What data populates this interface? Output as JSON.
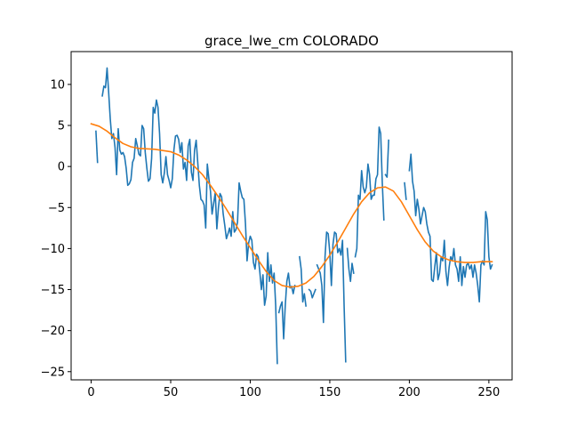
{
  "chart_data": {
    "type": "line",
    "title": "grace_lwe_cm COLORADO",
    "xlabel": "",
    "ylabel": "",
    "xlim": [
      -12.6,
      264.6
    ],
    "ylim": [
      -26,
      14
    ],
    "xticks": [
      0,
      50,
      100,
      150,
      200,
      250
    ],
    "yticks": [
      10,
      5,
      0,
      -5,
      -10,
      -15,
      -20,
      -25
    ],
    "grid": false,
    "legend": "none",
    "series": [
      {
        "color": "#1f77b4",
        "segments": [
          [
            [
              3,
              4.3
            ],
            [
              4,
              0.5
            ]
          ],
          [
            [
              7,
              8.6
            ],
            [
              8,
              9.8
            ],
            [
              9,
              9.6
            ],
            [
              10,
              12.0
            ],
            [
              11,
              9.0
            ],
            [
              12,
              5.8
            ],
            [
              13,
              3.4
            ],
            [
              14,
              4.0
            ],
            [
              15,
              2.3
            ],
            [
              16,
              -1.0
            ],
            [
              17,
              4.6
            ],
            [
              18,
              2.0
            ],
            [
              19,
              1.5
            ],
            [
              20,
              1.7
            ],
            [
              21,
              1.2
            ],
            [
              22,
              -0.2
            ],
            [
              23,
              -2.3
            ],
            [
              24,
              -2.1
            ],
            [
              25,
              -1.6
            ],
            [
              26,
              0.5
            ],
            [
              27,
              1.0
            ],
            [
              28,
              3.4
            ],
            [
              29,
              2.5
            ],
            [
              30,
              1.5
            ],
            [
              31,
              1.3
            ],
            [
              32,
              5.0
            ],
            [
              33,
              4.6
            ],
            [
              34,
              1.7
            ],
            [
              35,
              -0.2
            ],
            [
              36,
              -1.8
            ],
            [
              37,
              -1.5
            ],
            [
              38,
              1.0
            ],
            [
              39,
              7.2
            ],
            [
              40,
              6.5
            ],
            [
              41,
              8.1
            ],
            [
              42,
              7.2
            ],
            [
              43,
              4.0
            ],
            [
              44,
              -1.0
            ],
            [
              45,
              -2.0
            ],
            [
              46,
              -0.8
            ],
            [
              47,
              1.2
            ],
            [
              48,
              -1.0
            ],
            [
              49,
              -1.7
            ],
            [
              50,
              -2.6
            ],
            [
              51,
              -1.5
            ],
            [
              52,
              2.0
            ],
            [
              53,
              3.7
            ],
            [
              54,
              3.8
            ],
            [
              55,
              3.3
            ],
            [
              56,
              1.7
            ],
            [
              57,
              2.9
            ],
            [
              58,
              -0.3
            ],
            [
              59,
              0.5
            ],
            [
              60,
              -1.7
            ],
            [
              61,
              2.5
            ],
            [
              62,
              3.3
            ],
            [
              63,
              -0.7
            ],
            [
              64,
              -1.7
            ],
            [
              65,
              2.0
            ],
            [
              66,
              3.2
            ],
            [
              67,
              0.5
            ],
            [
              68,
              -2.3
            ],
            [
              69,
              -4.0
            ],
            [
              70,
              -4.2
            ],
            [
              71,
              -4.7
            ],
            [
              72,
              -7.5
            ],
            [
              73,
              0.3
            ],
            [
              74,
              -1.5
            ],
            [
              75,
              -3.0
            ],
            [
              76,
              -5.8
            ],
            [
              77,
              -4.5
            ],
            [
              78,
              -3.2
            ],
            [
              79,
              -7.6
            ],
            [
              80,
              -5.0
            ],
            [
              81,
              -3.3
            ],
            [
              82,
              -3.7
            ],
            [
              83,
              -5.8
            ],
            [
              84,
              -7.2
            ],
            [
              85,
              -8.8
            ],
            [
              86,
              -8.2
            ],
            [
              87,
              -7.5
            ],
            [
              88,
              -8.5
            ],
            [
              89,
              -5.5
            ],
            [
              90,
              -8.0
            ],
            [
              91,
              -7.7
            ],
            [
              92,
              -6.8
            ],
            [
              93,
              -2.0
            ],
            [
              94,
              -3.0
            ],
            [
              95,
              -3.8
            ],
            [
              96,
              -4.0
            ],
            [
              97,
              -7.0
            ],
            [
              98,
              -11.5
            ],
            [
              99,
              -9.3
            ],
            [
              100,
              -8.5
            ],
            [
              101,
              -9.0
            ],
            [
              102,
              -11.7
            ],
            [
              103,
              -12.5
            ],
            [
              104,
              -10.7
            ],
            [
              105,
              -11.0
            ],
            [
              106,
              -12.8
            ],
            [
              107,
              -15.0
            ],
            [
              108,
              -13.2
            ],
            [
              109,
              -16.9
            ],
            [
              110,
              -15.8
            ],
            [
              111,
              -10.5
            ],
            [
              112,
              -14.0
            ],
            [
              113,
              -12.0
            ],
            [
              114,
              -14.2
            ],
            [
              115,
              -13.0
            ],
            [
              116,
              -17.0
            ],
            [
              117,
              -24.0
            ]
          ],
          [
            [
              118,
              -17.8
            ],
            [
              119,
              -17.0
            ],
            [
              120,
              -16.5
            ],
            [
              121,
              -21.0
            ],
            [
              122,
              -17.0
            ],
            [
              123,
              -14.0
            ],
            [
              124,
              -13.0
            ],
            [
              125,
              -14.8
            ],
            [
              126,
              -14.6
            ],
            [
              127,
              -15.5
            ],
            [
              128,
              -14.5
            ]
          ],
          [
            [
              131,
              -11.0
            ],
            [
              132,
              -12.5
            ],
            [
              133,
              -16.5
            ],
            [
              134,
              -15.5
            ],
            [
              135,
              -17.0
            ]
          ],
          [
            [
              137,
              -15.0
            ],
            [
              138,
              -15.2
            ],
            [
              139,
              -16.0
            ],
            [
              140,
              -15.5
            ],
            [
              141,
              -15.0
            ]
          ],
          [
            [
              142,
              -12.0
            ],
            [
              143,
              -12.5
            ],
            [
              144,
              -13.0
            ],
            [
              145,
              -14.5
            ],
            [
              146,
              -19.0
            ],
            [
              147,
              -11.0
            ],
            [
              148,
              -8.0
            ],
            [
              149,
              -8.2
            ],
            [
              150,
              -10.5
            ],
            [
              151,
              -14.5
            ],
            [
              152,
              -9.5
            ],
            [
              153,
              -8.0
            ],
            [
              154,
              -8.2
            ],
            [
              155,
              -10.5
            ],
            [
              156,
              -10.0
            ],
            [
              157,
              -10.8
            ],
            [
              158,
              -9.0
            ],
            [
              159,
              -17.0
            ],
            [
              160,
              -23.8
            ]
          ],
          [
            [
              161,
              -10.0
            ],
            [
              162,
              -12.5
            ],
            [
              163,
              -14.0
            ],
            [
              164,
              -11.8
            ],
            [
              165,
              -13.0
            ]
          ],
          [
            [
              166,
              -11.0
            ],
            [
              167,
              -10.0
            ],
            [
              168,
              -3.5
            ],
            [
              169,
              -4.0
            ],
            [
              170,
              -0.5
            ],
            [
              171,
              -2.5
            ],
            [
              172,
              -3.2
            ],
            [
              173,
              -2.5
            ],
            [
              174,
              0.3
            ],
            [
              175,
              -1.0
            ],
            [
              176,
              -4.0
            ],
            [
              177,
              -3.5
            ],
            [
              178,
              -3.5
            ],
            [
              179,
              -1.5
            ],
            [
              180,
              -1.0
            ],
            [
              181,
              4.8
            ],
            [
              182,
              4.0
            ],
            [
              183,
              -2.0
            ],
            [
              184,
              -6.5
            ]
          ],
          [
            [
              185,
              -1.0
            ],
            [
              186,
              -1.3
            ],
            [
              187,
              3.2
            ]
          ],
          [
            [
              197,
              -2.0
            ],
            [
              198,
              -4.0
            ]
          ],
          [
            [
              200,
              -0.5
            ],
            [
              201,
              1.5
            ],
            [
              202,
              -1.8
            ],
            [
              203,
              -3.0
            ],
            [
              204,
              -6.0
            ],
            [
              205,
              -4.0
            ],
            [
              206,
              -5.2
            ],
            [
              207,
              -7.0
            ],
            [
              208,
              -6.0
            ],
            [
              209,
              -5.0
            ],
            [
              210,
              -5.5
            ],
            [
              211,
              -7.0
            ],
            [
              212,
              -8.0
            ],
            [
              213,
              -8.5
            ],
            [
              214,
              -13.8
            ],
            [
              215,
              -14.0
            ],
            [
              216,
              -12.2
            ],
            [
              217,
              -10.5
            ],
            [
              218,
              -13.8
            ],
            [
              219,
              -13.0
            ],
            [
              220,
              -11.0
            ],
            [
              221,
              -11.5
            ],
            [
              222,
              -9.0
            ],
            [
              223,
              -12.8
            ],
            [
              224,
              -14.5
            ],
            [
              225,
              -12.3
            ],
            [
              226,
              -11.0
            ],
            [
              227,
              -11.5
            ],
            [
              228,
              -10.0
            ],
            [
              229,
              -12.0
            ],
            [
              230,
              -12.5
            ],
            [
              231,
              -14.0
            ],
            [
              232,
              -11.0
            ],
            [
              233,
              -14.5
            ],
            [
              234,
              -12.2
            ],
            [
              235,
              -13.5
            ],
            [
              236,
              -12.0
            ],
            [
              237,
              -11.8
            ],
            [
              238,
              -12.5
            ],
            [
              239,
              -12.0
            ],
            [
              240,
              -13.5
            ],
            [
              241,
              -12.0
            ],
            [
              242,
              -13.0
            ],
            [
              243,
              -14.5
            ],
            [
              244,
              -16.5
            ],
            [
              245,
              -12.0
            ],
            [
              246,
              -11.5
            ],
            [
              247,
              -12.0
            ],
            [
              248,
              -5.5
            ],
            [
              249,
              -6.5
            ],
            [
              250,
              -11.0
            ],
            [
              251,
              -12.5
            ],
            [
              252,
              -12.0
            ]
          ]
        ]
      },
      {
        "color": "#ff7f0e",
        "segments": [
          [
            [
              0,
              5.2
            ],
            [
              5,
              4.9
            ],
            [
              10,
              4.3
            ],
            [
              15,
              3.5
            ],
            [
              20,
              2.8
            ],
            [
              25,
              2.4
            ],
            [
              30,
              2.2
            ],
            [
              40,
              2.1
            ],
            [
              50,
              1.8
            ],
            [
              55,
              1.4
            ],
            [
              60,
              0.8
            ],
            [
              65,
              0.0
            ],
            [
              70,
              -1.0
            ],
            [
              75,
              -2.3
            ],
            [
              80,
              -3.7
            ],
            [
              85,
              -5.2
            ],
            [
              90,
              -6.8
            ],
            [
              95,
              -8.4
            ],
            [
              100,
              -9.9
            ],
            [
              105,
              -11.4
            ],
            [
              110,
              -12.8
            ],
            [
              115,
              -13.9
            ],
            [
              120,
              -14.5
            ],
            [
              125,
              -14.7
            ],
            [
              130,
              -14.6
            ],
            [
              135,
              -14.2
            ],
            [
              140,
              -13.4
            ],
            [
              145,
              -12.2
            ],
            [
              150,
              -10.8
            ],
            [
              155,
              -9.2
            ],
            [
              160,
              -7.5
            ],
            [
              165,
              -5.8
            ],
            [
              170,
              -4.3
            ],
            [
              175,
              -3.2
            ],
            [
              180,
              -2.6
            ],
            [
              185,
              -2.5
            ],
            [
              190,
              -3.0
            ],
            [
              195,
              -4.3
            ],
            [
              200,
              -6.0
            ],
            [
              205,
              -7.7
            ],
            [
              210,
              -9.2
            ],
            [
              215,
              -10.3
            ],
            [
              220,
              -11.0
            ],
            [
              225,
              -11.4
            ],
            [
              230,
              -11.6
            ],
            [
              235,
              -11.7
            ],
            [
              240,
              -11.7
            ],
            [
              245,
              -11.6
            ],
            [
              252,
              -11.6
            ]
          ]
        ]
      }
    ]
  }
}
